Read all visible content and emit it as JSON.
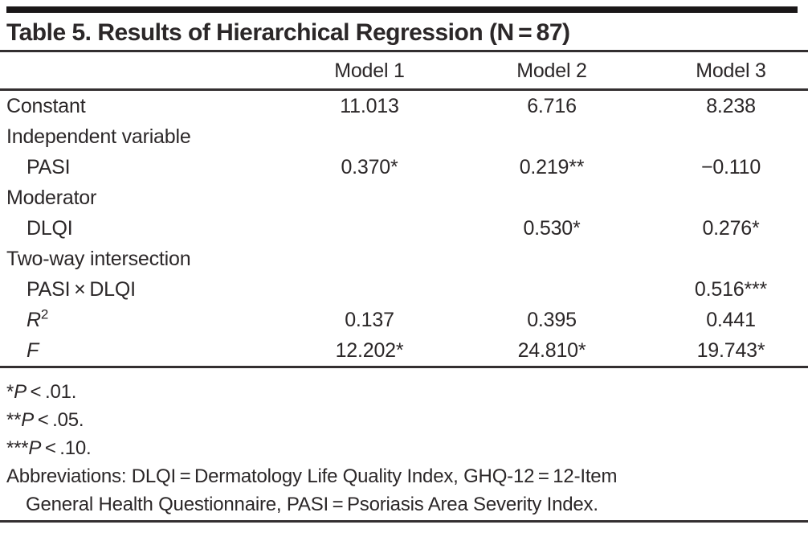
{
  "colors": {
    "text": "#2b2728",
    "rule": "#332f30",
    "bar": "#1a1718",
    "background": "#ffffff"
  },
  "title": "Table 5. Results of Hierarchical Regression (N = 87)",
  "table": {
    "columns": [
      "",
      "Model 1",
      "Model 2",
      "Model 3"
    ],
    "rows": [
      {
        "label": "Constant",
        "values": [
          "11.013",
          "6.716",
          "8.238"
        ]
      },
      {
        "label": "Independent variable",
        "values": [
          "",
          "",
          ""
        ]
      },
      {
        "label": "PASI",
        "values": [
          "0.370*",
          "0.219**",
          "−0.110"
        ]
      },
      {
        "label": "Moderator",
        "values": [
          "",
          "",
          ""
        ]
      },
      {
        "label": "DLQI",
        "values": [
          "",
          "0.530*",
          "0.276*"
        ]
      },
      {
        "label": "Two-way intersection",
        "values": [
          "",
          "",
          ""
        ]
      },
      {
        "label": "PASI × DLQI",
        "values": [
          "",
          "",
          "0.516***"
        ]
      },
      {
        "label": "R",
        "label_sup": "2",
        "values": [
          "0.137",
          "0.395",
          "0.441"
        ]
      },
      {
        "label": "F",
        "values": [
          "12.202*",
          "24.810*",
          "19.743*"
        ]
      }
    ]
  },
  "footnotes": [
    {
      "stars": "*",
      "p_symbol": "P",
      "condition": " < .01."
    },
    {
      "stars": "**",
      "p_symbol": "P",
      "condition": " < .05."
    },
    {
      "stars": "***",
      "p_symbol": "P",
      "condition": " < .10."
    }
  ],
  "abbreviations": {
    "line1": "Abbreviations: DLQI = Dermatology Life Quality Index, GHQ-12 = 12-Item",
    "line2": "General Health Questionnaire, PASI = Psoriasis Area Severity Index."
  }
}
